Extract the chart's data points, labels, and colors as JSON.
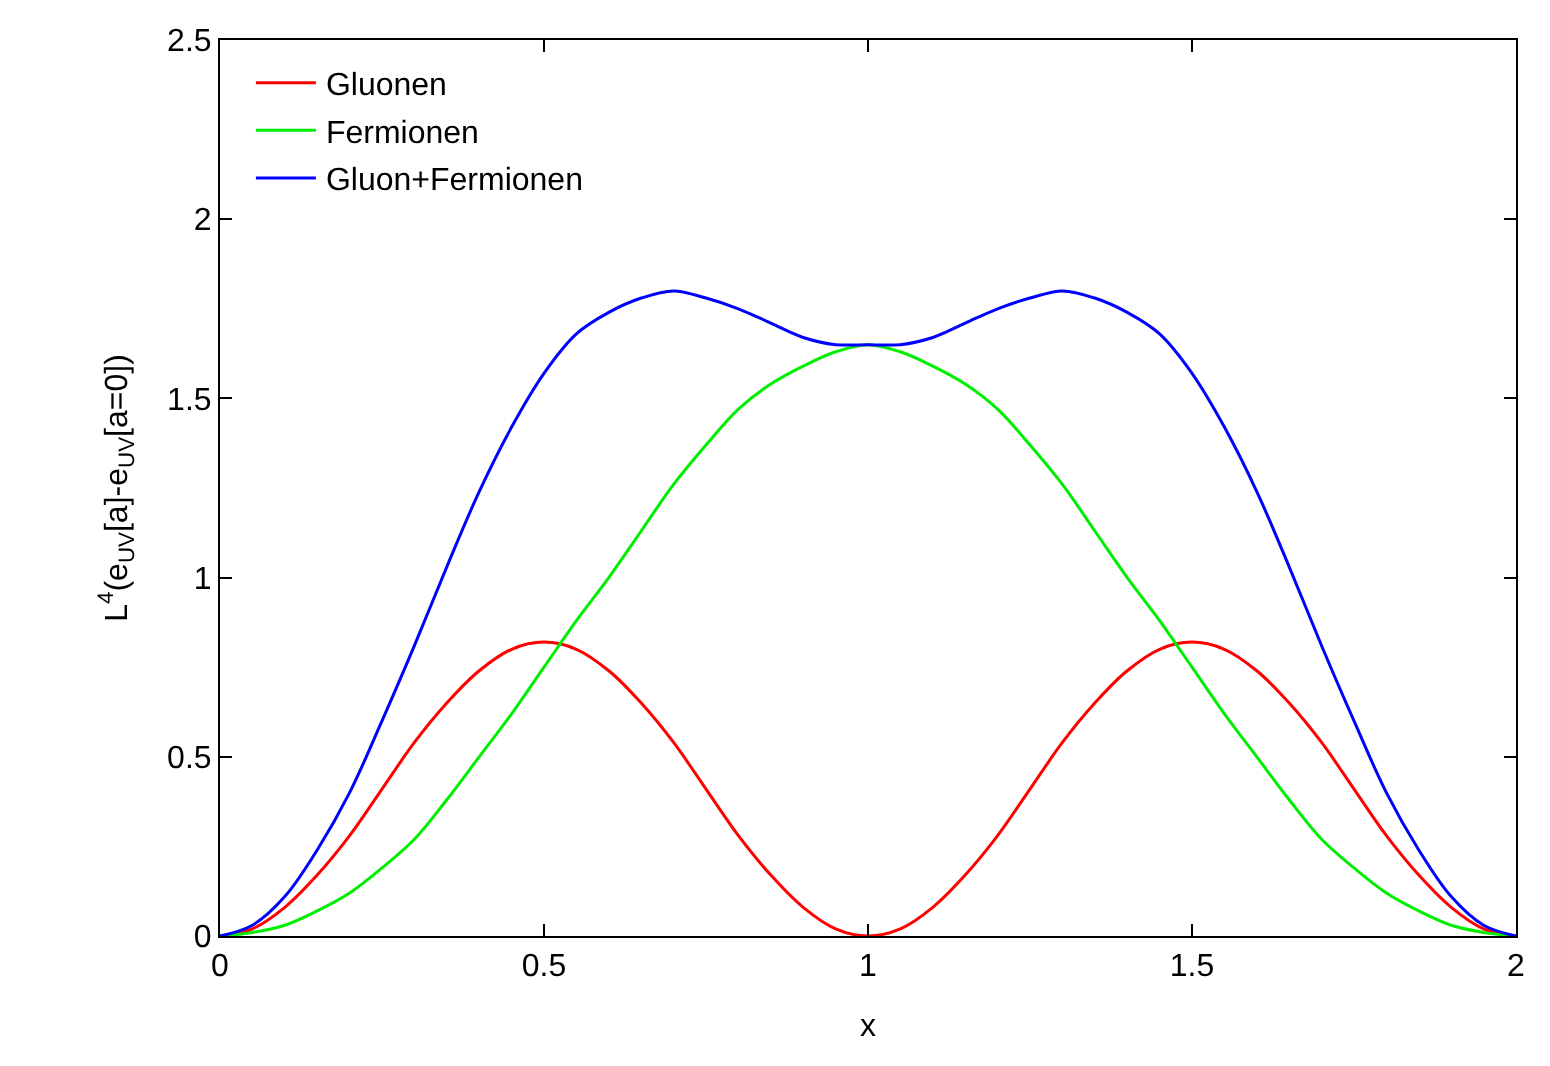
{
  "chart_data": {
    "type": "line",
    "xlabel": "x",
    "ylabel": "L$^{4}$(e$_{UV}$[a]-e$_{UV}$[a=0])",
    "x": [
      0,
      0.05,
      0.1,
      0.15,
      0.2,
      0.25,
      0.3,
      0.35,
      0.4,
      0.45,
      0.5,
      0.55,
      0.6,
      0.65,
      0.7,
      0.75,
      0.8,
      0.85,
      0.9,
      0.95,
      1,
      1.05,
      1.1,
      1.15,
      1.2,
      1.25,
      1.3,
      1.35,
      1.4,
      1.45,
      1.5,
      1.55,
      1.6,
      1.65,
      1.7,
      1.75,
      1.8,
      1.85,
      1.9,
      1.95,
      2
    ],
    "series": [
      {
        "name": "Gluonen",
        "color": "#ff0000",
        "values": [
          0,
          0.02,
          0.08,
          0.17,
          0.28,
          0.41,
          0.54,
          0.65,
          0.74,
          0.8,
          0.82,
          0.8,
          0.74,
          0.65,
          0.54,
          0.41,
          0.28,
          0.17,
          0.08,
          0.02,
          0,
          0.02,
          0.08,
          0.17,
          0.28,
          0.41,
          0.54,
          0.65,
          0.74,
          0.8,
          0.82,
          0.8,
          0.74,
          0.65,
          0.54,
          0.41,
          0.28,
          0.17,
          0.08,
          0.02,
          0
        ]
      },
      {
        "name": "Fermionen",
        "color": "#00ee00",
        "values": [
          0,
          0.01,
          0.03,
          0.07,
          0.12,
          0.19,
          0.27,
          0.38,
          0.5,
          0.62,
          0.75,
          0.88,
          1.0,
          1.13,
          1.26,
          1.37,
          1.47,
          1.54,
          1.59,
          1.63,
          1.65,
          1.63,
          1.59,
          1.54,
          1.47,
          1.37,
          1.26,
          1.13,
          1.0,
          0.88,
          0.75,
          0.62,
          0.5,
          0.38,
          0.27,
          0.19,
          0.12,
          0.07,
          0.03,
          0.01,
          0
        ]
      },
      {
        "name": "Gluon+Fermionen",
        "color": "#0000ff",
        "values": [
          0,
          0.03,
          0.11,
          0.24,
          0.4,
          0.6,
          0.81,
          1.03,
          1.24,
          1.42,
          1.57,
          1.68,
          1.74,
          1.78,
          1.8,
          1.78,
          1.75,
          1.71,
          1.67,
          1.65,
          1.65,
          1.65,
          1.67,
          1.71,
          1.75,
          1.78,
          1.8,
          1.78,
          1.74,
          1.68,
          1.57,
          1.42,
          1.24,
          1.03,
          0.81,
          0.6,
          0.4,
          0.24,
          0.11,
          0.03,
          0
        ]
      }
    ],
    "xlim": [
      0,
      2
    ],
    "xticks": [
      0,
      0.5,
      1,
      1.5,
      2
    ],
    "ylim": [
      0,
      2.5
    ],
    "yticks": [
      0,
      0.5,
      1,
      1.5,
      2,
      2.5
    ],
    "legend": "top left",
    "marker": "none",
    "line_style": "solid"
  }
}
